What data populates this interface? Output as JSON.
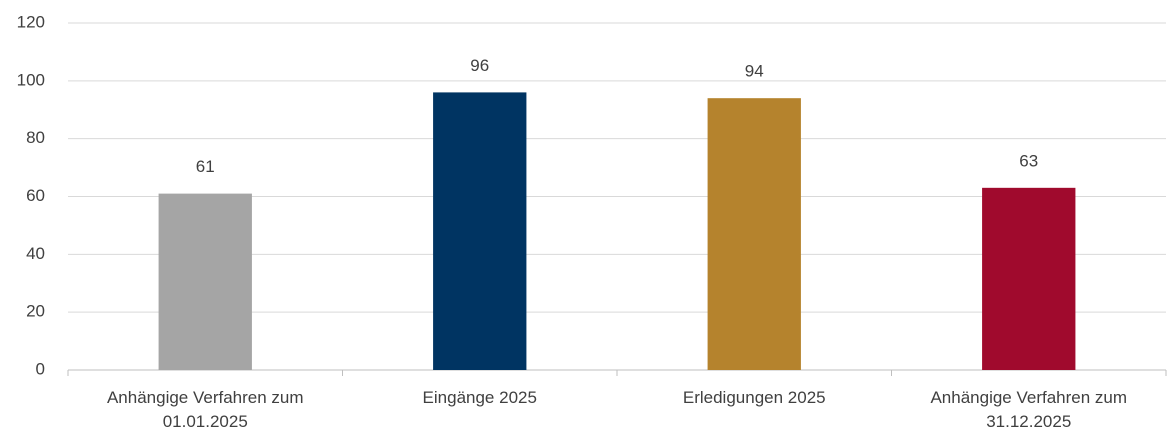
{
  "chart_data": {
    "type": "bar",
    "categories": [
      "Anhängige Verfahren zum 01.01.2025",
      "Eingänge 2025",
      "Erledigungen 2025",
      "Anhängige Verfahren zum 31.12.2025"
    ],
    "values": [
      61,
      96,
      94,
      63
    ],
    "colors": [
      "#a5a5a5",
      "#003462",
      "#b5832d",
      "#a00a2d"
    ],
    "ylim": [
      0,
      120
    ],
    "yticks": [
      0,
      20,
      40,
      60,
      80,
      100,
      120
    ],
    "grid": true
  }
}
